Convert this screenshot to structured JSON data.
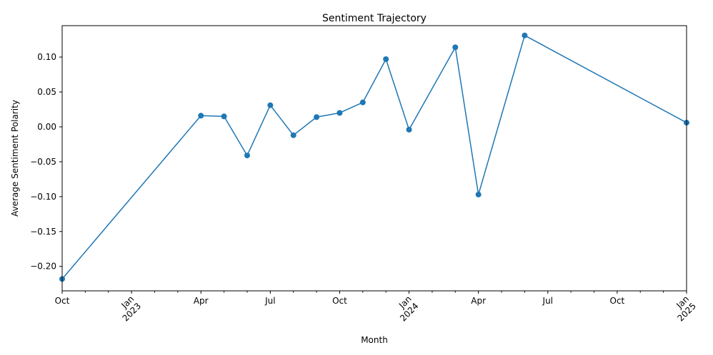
{
  "chart_data": {
    "type": "line",
    "title": "Sentiment Trajectory",
    "xlabel": "Month",
    "ylabel": "Average Sentiment Polarity",
    "xlim": [
      "2022-10",
      "2025-01"
    ],
    "ylim": [
      -0.235,
      0.145
    ],
    "grid": false,
    "legend": "none",
    "color": "#1f77b4",
    "marker": "circle",
    "y_ticks": [
      {
        "value": 0.1,
        "label": "0.10"
      },
      {
        "value": 0.05,
        "label": "0.05"
      },
      {
        "value": 0.0,
        "label": "0.00"
      },
      {
        "value": -0.05,
        "label": "−0.05"
      },
      {
        "value": -0.1,
        "label": "−0.10"
      },
      {
        "value": -0.15,
        "label": "−0.15"
      },
      {
        "value": -0.2,
        "label": "−0.20"
      }
    ],
    "x_ticks": [
      {
        "value": "2022-10",
        "label": "Oct",
        "sublabel": "",
        "rotated": false
      },
      {
        "value": "2023-01",
        "label": "Jan",
        "sublabel": "2023",
        "rotated": true
      },
      {
        "value": "2023-04",
        "label": "Apr",
        "sublabel": "",
        "rotated": false
      },
      {
        "value": "2023-07",
        "label": "Jul",
        "sublabel": "",
        "rotated": false
      },
      {
        "value": "2023-10",
        "label": "Oct",
        "sublabel": "",
        "rotated": false
      },
      {
        "value": "2024-01",
        "label": "Jan",
        "sublabel": "2024",
        "rotated": true
      },
      {
        "value": "2024-04",
        "label": "Apr",
        "sublabel": "",
        "rotated": false
      },
      {
        "value": "2024-07",
        "label": "Jul",
        "sublabel": "",
        "rotated": false
      },
      {
        "value": "2024-10",
        "label": "Oct",
        "sublabel": "",
        "rotated": false
      },
      {
        "value": "2025-01",
        "label": "Jan",
        "sublabel": "2025",
        "rotated": true
      }
    ],
    "x_minor_ticks": [
      "2022-11",
      "2022-12",
      "2023-02",
      "2023-03",
      "2023-05",
      "2023-06",
      "2023-08",
      "2023-09",
      "2023-11",
      "2023-12",
      "2024-02",
      "2024-03",
      "2024-05",
      "2024-06",
      "2024-08",
      "2024-09",
      "2024-11",
      "2024-12"
    ],
    "series": [
      {
        "x": [
          "2022-10",
          "2023-04",
          "2023-05",
          "2023-06",
          "2023-07",
          "2023-08",
          "2023-09",
          "2023-10",
          "2023-11",
          "2023-12",
          "2024-01",
          "2024-03",
          "2024-04",
          "2024-06",
          "2025-01"
        ],
        "y": [
          -0.218,
          0.016,
          0.015,
          -0.041,
          0.031,
          -0.012,
          0.014,
          0.02,
          0.035,
          0.097,
          -0.004,
          0.114,
          -0.097,
          0.131,
          0.006
        ]
      }
    ]
  }
}
